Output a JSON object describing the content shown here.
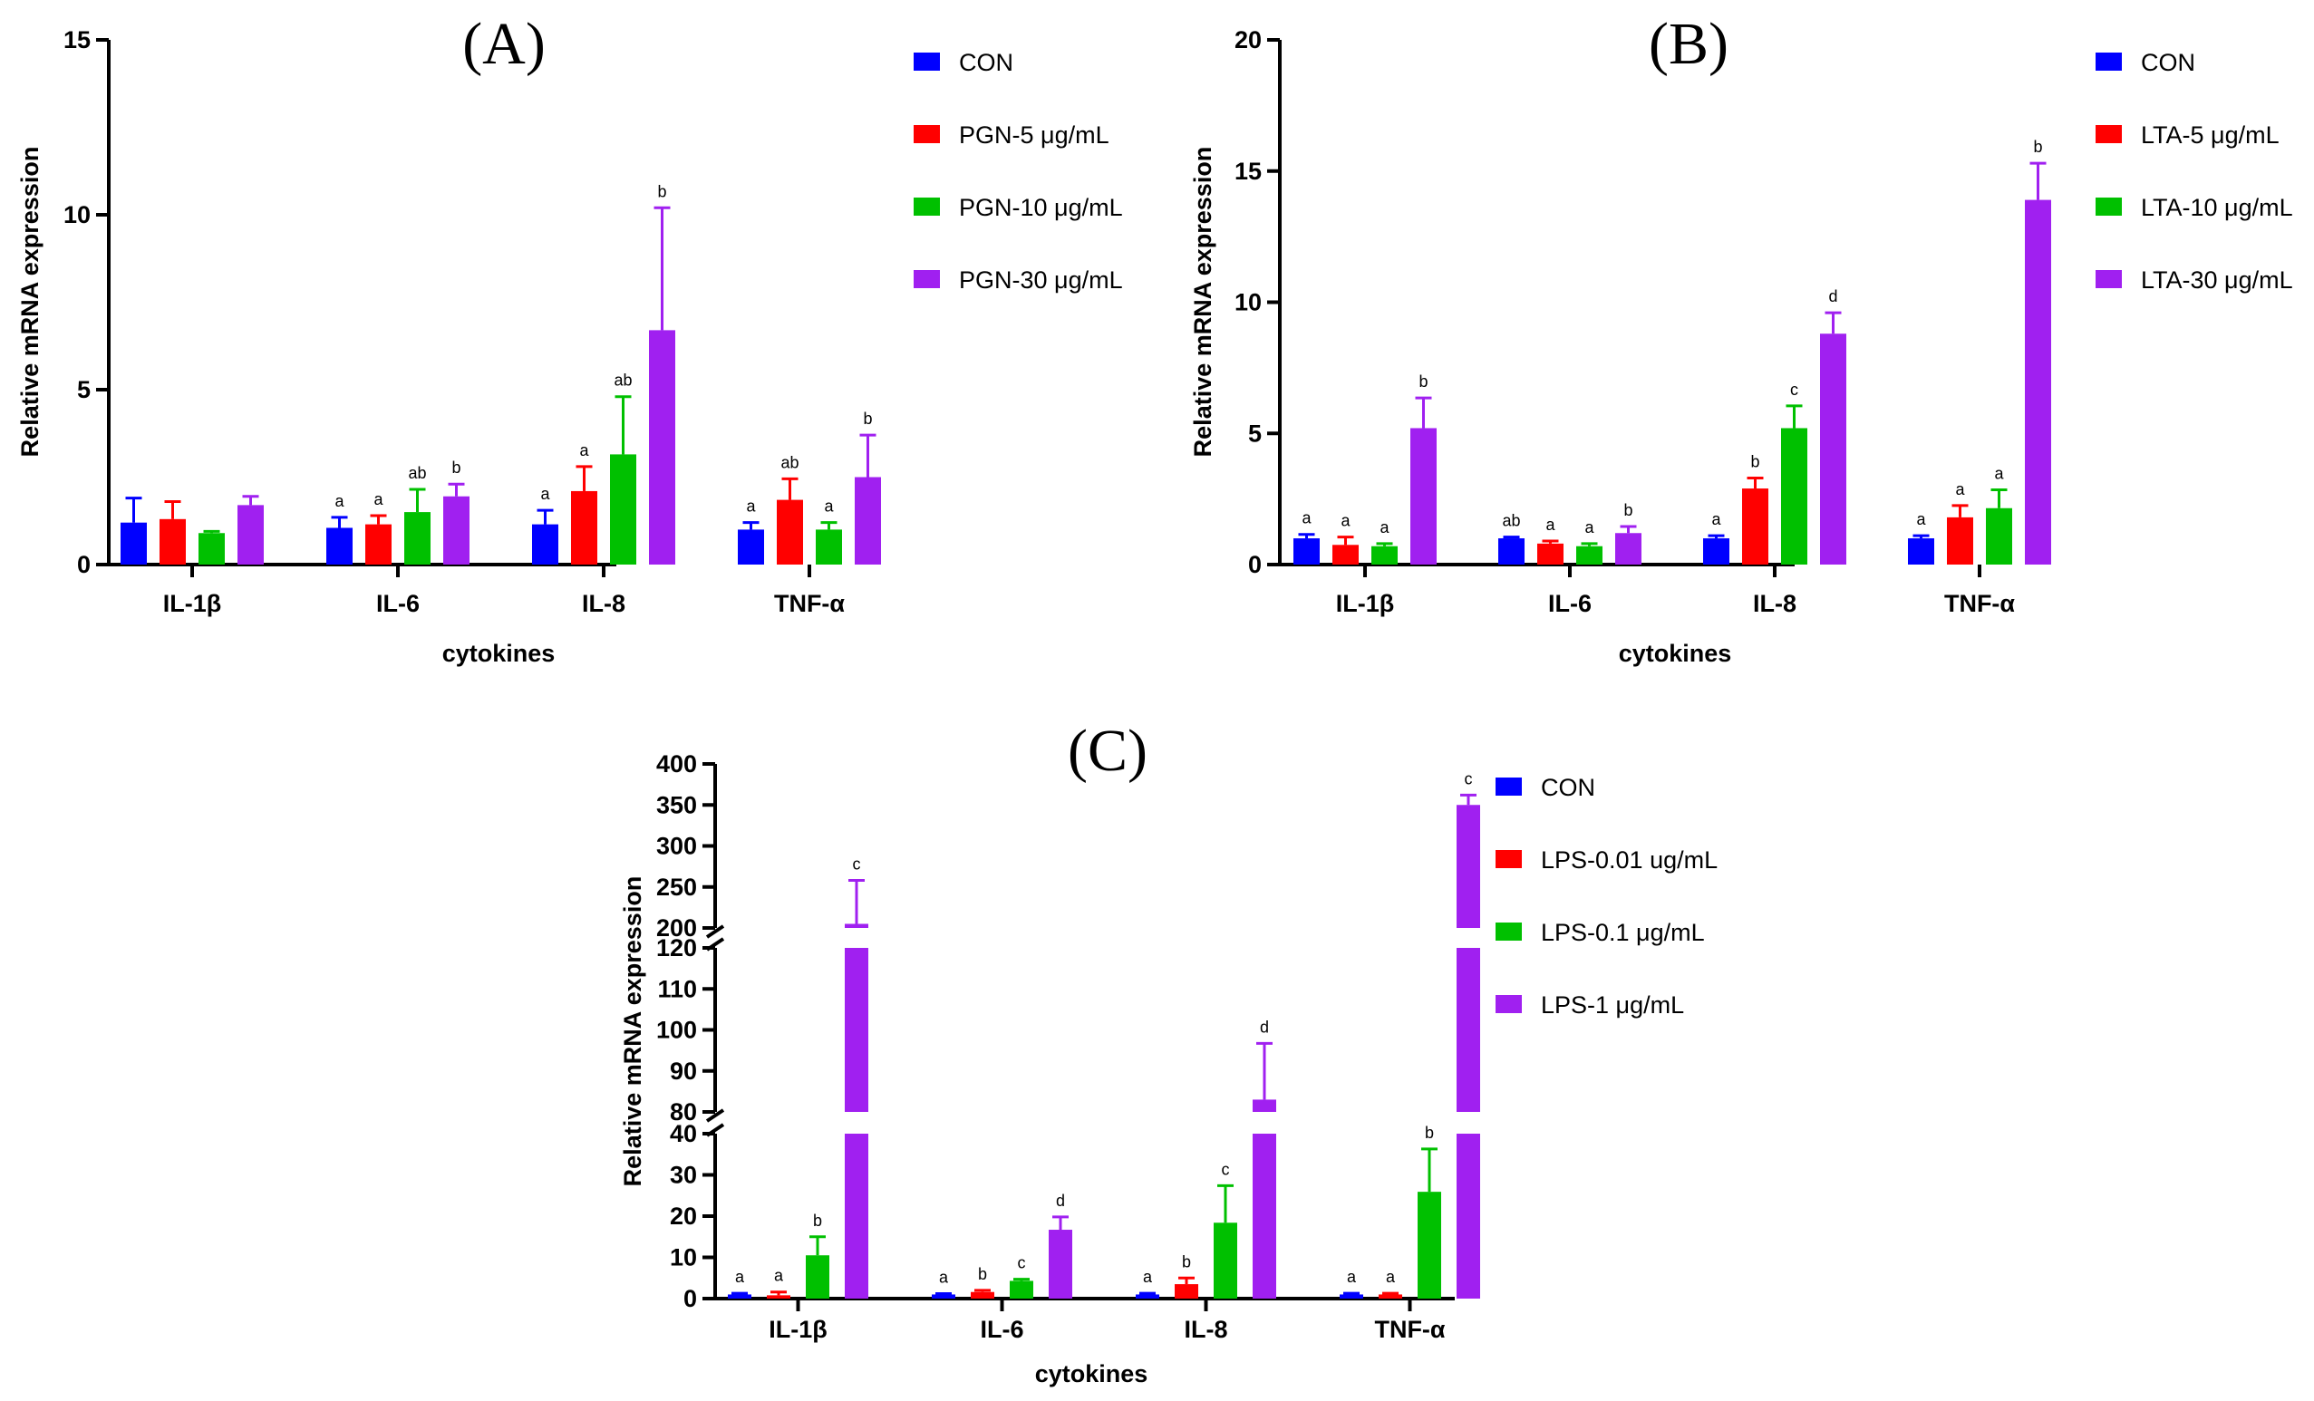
{
  "colors": {
    "CON": "#0000ff",
    "LOW": "#ff0000",
    "MID": "#00c000",
    "HIGH": "#a020f0",
    "axis": "#000000"
  },
  "chart_data": [
    {
      "panel": "(A)",
      "type": "bar",
      "xlabel": "cytokines",
      "ylabel": "Relative mRNA expression",
      "ylim": [
        0,
        15
      ],
      "yticks": [
        0,
        5,
        10,
        15
      ],
      "categories": [
        "IL-1β",
        "IL-6",
        "IL-8",
        "TNF-α"
      ],
      "series": [
        {
          "name": "CON",
          "color_key": "CON",
          "values": [
            1.2,
            1.05,
            1.15,
            1.0
          ],
          "errors": [
            0.7,
            0.3,
            0.4,
            0.2
          ],
          "labels": [
            "",
            "a",
            "a",
            "a"
          ]
        },
        {
          "name": "PGN-5 μg/mL",
          "color_key": "LOW",
          "values": [
            1.3,
            1.15,
            2.1,
            1.85
          ],
          "errors": [
            0.5,
            0.25,
            0.7,
            0.6
          ],
          "labels": [
            "",
            "a",
            "a",
            "ab"
          ]
        },
        {
          "name": "PGN-10 μg/mL",
          "color_key": "MID",
          "values": [
            0.9,
            1.5,
            3.15,
            1.0
          ],
          "errors": [
            0.05,
            0.65,
            1.65,
            0.2
          ],
          "labels": [
            "",
            "ab",
            "ab",
            "a"
          ]
        },
        {
          "name": "PGN-30 μg/mL",
          "color_key": "HIGH",
          "values": [
            1.7,
            1.95,
            6.7,
            2.5
          ],
          "errors": [
            0.25,
            0.35,
            3.5,
            1.2
          ],
          "labels": [
            "",
            "b",
            "b",
            "b"
          ]
        }
      ]
    },
    {
      "panel": "(B)",
      "type": "bar",
      "xlabel": "cytokines",
      "ylabel": "Relative mRNA expression",
      "ylim": [
        0,
        20
      ],
      "yticks": [
        0,
        5,
        10,
        15,
        20
      ],
      "categories": [
        "IL-1β",
        "IL-6",
        "IL-8",
        "TNF-α"
      ],
      "series": [
        {
          "name": "CON",
          "color_key": "CON",
          "values": [
            1.0,
            1.0,
            1.0,
            1.0
          ],
          "errors": [
            0.15,
            0.05,
            0.1,
            0.1
          ],
          "labels": [
            "a",
            "ab",
            "a",
            "a"
          ]
        },
        {
          "name": "LTA-5 μg/mL",
          "color_key": "LOW",
          "values": [
            0.75,
            0.8,
            2.9,
            1.8
          ],
          "errors": [
            0.3,
            0.1,
            0.4,
            0.45
          ],
          "labels": [
            "a",
            "a",
            "b",
            "a"
          ]
        },
        {
          "name": "LTA-10 μg/mL",
          "color_key": "MID",
          "values": [
            0.7,
            0.7,
            5.2,
            2.15
          ],
          "errors": [
            0.1,
            0.1,
            0.85,
            0.7
          ],
          "labels": [
            "a",
            "a",
            "c",
            "a"
          ]
        },
        {
          "name": "LTA-30 μg/mL",
          "color_key": "HIGH",
          "values": [
            5.2,
            1.2,
            8.8,
            13.9
          ],
          "errors": [
            1.15,
            0.25,
            0.8,
            1.4
          ],
          "labels": [
            "b",
            "b",
            "d",
            "b"
          ]
        }
      ]
    },
    {
      "panel": "(C)",
      "type": "bar",
      "xlabel": "cytokines",
      "ylabel": "Relative mRNA expression",
      "broken_axis": [
        [
          0,
          40
        ],
        [
          80,
          120
        ],
        [
          200,
          400
        ]
      ],
      "yticks": [
        0,
        10,
        20,
        30,
        40,
        80,
        90,
        100,
        110,
        120,
        200,
        250,
        300,
        350,
        400
      ],
      "categories": [
        "IL-1β",
        "IL-6",
        "IL-8",
        "TNF-α"
      ],
      "series": [
        {
          "name": "CON",
          "color_key": "CON",
          "values": [
            1.0,
            1.0,
            1.0,
            1.0
          ],
          "errors": [
            0.3,
            0.2,
            0.3,
            0.3
          ],
          "labels": [
            "a",
            "a",
            "a",
            "a"
          ]
        },
        {
          "name": "LPS-0.01 ug/mL",
          "color_key": "LOW",
          "values": [
            0.8,
            1.6,
            3.5,
            1.0
          ],
          "errors": [
            0.8,
            0.4,
            1.5,
            0.3
          ],
          "labels": [
            "a",
            "b",
            "b",
            "a"
          ]
        },
        {
          "name": "LPS-0.1 μg/mL",
          "color_key": "MID",
          "values": [
            10.5,
            4.3,
            18.4,
            25.9
          ],
          "errors": [
            4.5,
            0.4,
            9.0,
            10.4
          ],
          "labels": [
            "b",
            "c",
            "c",
            "b"
          ]
        },
        {
          "name": "LPS-1 μg/mL",
          "color_key": "HIGH",
          "values": [
            205,
            16.7,
            83.0,
            350
          ],
          "errors": [
            53,
            3.1,
            13.7,
            12
          ],
          "labels": [
            "c",
            "d",
            "d",
            "c"
          ]
        }
      ]
    }
  ]
}
